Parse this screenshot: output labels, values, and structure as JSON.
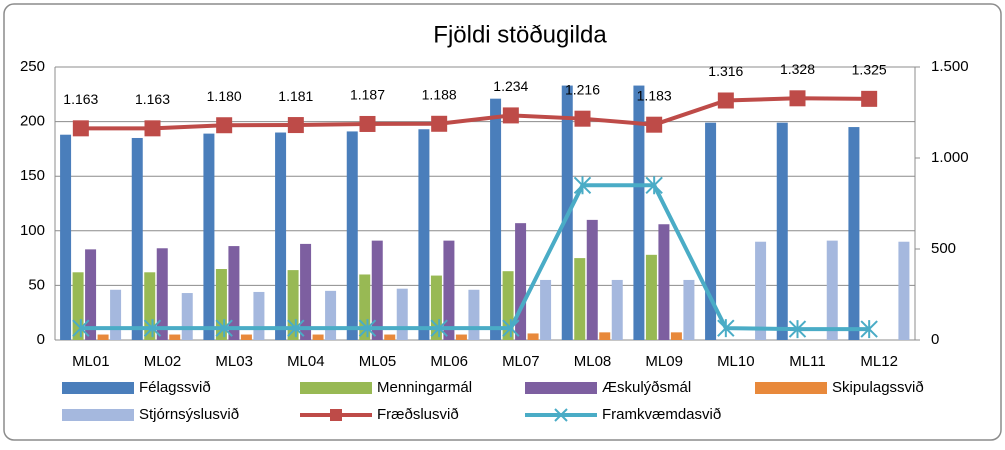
{
  "chart_data": {
    "type": "combo",
    "title": "Fjöldi stöðugilda",
    "categories": [
      "ML01",
      "ML02",
      "ML03",
      "ML04",
      "ML05",
      "ML06",
      "ML07",
      "ML08",
      "ML09",
      "ML10",
      "ML11",
      "ML12"
    ],
    "ylim": [
      0,
      250
    ],
    "yticks": [
      0,
      50,
      100,
      150,
      200,
      250
    ],
    "y2lim": [
      0,
      1500
    ],
    "y2ticks": [
      0,
      500,
      {
        "value": 1000,
        "label": "1.000"
      },
      {
        "value": 1500,
        "label": "1.500"
      }
    ],
    "grid": true,
    "legend": "bottom",
    "series": [
      {
        "name": "Félagssvið",
        "kind": "bar",
        "color": "#4a7ebb",
        "values": [
          188,
          185,
          189,
          190,
          191,
          193,
          221,
          233,
          233,
          199,
          199,
          195
        ]
      },
      {
        "name": "Menningarmál",
        "kind": "bar",
        "color": "#98b954",
        "values": [
          62,
          62,
          65,
          64,
          60,
          59,
          63,
          75,
          78,
          0,
          0,
          0
        ]
      },
      {
        "name": "Æskulýðsmál",
        "kind": "bar",
        "color": "#7d5fa0",
        "values": [
          83,
          84,
          86,
          88,
          91,
          91,
          107,
          110,
          106,
          0,
          0,
          0
        ]
      },
      {
        "name": "Skipulagssvið",
        "kind": "bar",
        "color": "#e8893b",
        "values": [
          5,
          5,
          5,
          5,
          5,
          5,
          6,
          7,
          7,
          0,
          0,
          0
        ]
      },
      {
        "name": "Stjórnsýslusvið",
        "kind": "bar",
        "color": "#a5b8de",
        "values": [
          46,
          43,
          44,
          45,
          47,
          46,
          55,
          55,
          55,
          90,
          91,
          90
        ]
      },
      {
        "name": "Fræðslusvið",
        "kind": "line",
        "marker": "square",
        "axis": "y2",
        "color": "#be4b48",
        "values": [
          1163,
          1163,
          1180,
          1181,
          1187,
          1188,
          1234,
          1216,
          1183,
          1316,
          1328,
          1325
        ],
        "value_labels": [
          "1.163",
          "1.163",
          "1.180",
          "1.181",
          "1.187",
          "1.188",
          "1.234",
          "1.216",
          "1.183",
          "1.316",
          "1.328",
          "1.325"
        ]
      },
      {
        "name": "Framkvæmdasvið",
        "kind": "line",
        "marker": "x",
        "axis": "y2",
        "color": "#4aacc6",
        "values": [
          65,
          65,
          65,
          65,
          65,
          65,
          65,
          850,
          850,
          65,
          60,
          60
        ]
      }
    ]
  }
}
